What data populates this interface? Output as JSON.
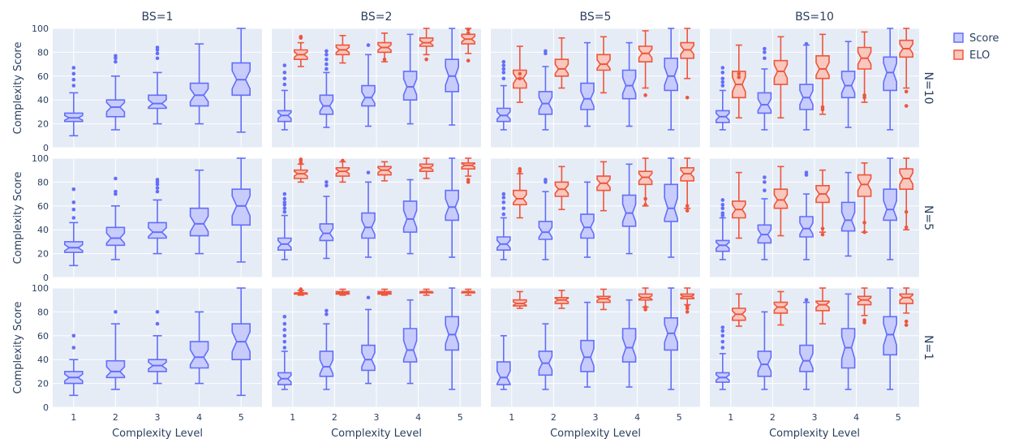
{
  "legend": [
    {
      "name": "Score",
      "color": "#636efa",
      "fill": "#c8ccfd"
    },
    {
      "name": "ELO",
      "color": "#ef553b",
      "fill": "#f9c7bd"
    }
  ],
  "col_titles": [
    "BS=1",
    "BS=2",
    "BS=5",
    "BS=10"
  ],
  "row_titles": [
    "N=10",
    "N=5",
    "N=1"
  ],
  "xlabel": "Complexity Level",
  "ylabel": "Complexity Score",
  "chart_data": {
    "type": "box",
    "layout": "facet grid, rows N = [10, 5, 1], columns BS = [1, 2, 5, 10], shared axes",
    "x": [
      1,
      2,
      3,
      4,
      5
    ],
    "ylim": [
      0,
      100
    ],
    "yticks": [
      0,
      20,
      40,
      60,
      80,
      100
    ],
    "notched": true,
    "grid": true,
    "legend_position": "top-right",
    "series": [
      "Score",
      "ELO"
    ],
    "panels": [
      {
        "row": "N=10",
        "col": "BS=1",
        "score": [
          [
            10,
            22,
            25,
            29,
            46
          ],
          [
            15,
            26,
            34,
            40,
            60
          ],
          [
            20,
            33,
            37,
            44,
            63
          ],
          [
            20,
            35,
            44,
            54,
            87
          ],
          [
            13,
            44,
            57,
            71,
            100
          ]
        ],
        "score_outliers": [
          [
            52,
            57,
            62,
            67
          ],
          [
            72,
            75,
            77
          ],
          [
            75,
            79,
            82,
            84
          ],
          [],
          []
        ],
        "elo": null
      },
      {
        "row": "N=10",
        "col": "BS=2",
        "score": [
          [
            15,
            22,
            27,
            31,
            48
          ],
          [
            17,
            28,
            35,
            44,
            63
          ],
          [
            18,
            35,
            42,
            52,
            78
          ],
          [
            20,
            40,
            51,
            64,
            95
          ],
          [
            19,
            47,
            60,
            74,
            100
          ]
        ],
        "score_outliers": [
          [
            53,
            58,
            63,
            69
          ],
          [
            66,
            70,
            74,
            78,
            81
          ],
          [
            86
          ],
          [],
          []
        ],
        "elo": [
          [
            68,
            74,
            78,
            82,
            88
          ],
          [
            71,
            78,
            82,
            86,
            94
          ],
          [
            72,
            80,
            84,
            88,
            96
          ],
          [
            78,
            85,
            88,
            92,
            100
          ],
          [
            79,
            87,
            91,
            95,
            100
          ]
        ],
        "elo_outliers": [
          [
            92,
            93
          ],
          [],
          [
            74
          ],
          [
            74
          ],
          [
            73,
            96,
            99
          ]
        ]
      },
      {
        "row": "N=10",
        "col": "BS=5",
        "score": [
          [
            15,
            22,
            27,
            33,
            52
          ],
          [
            15,
            28,
            37,
            47,
            68
          ],
          [
            18,
            32,
            41,
            54,
            88
          ],
          [
            18,
            41,
            52,
            65,
            88
          ],
          [
            15,
            48,
            60,
            75,
            100
          ]
        ],
        "score_outliers": [
          [
            58,
            63,
            66,
            69,
            72
          ],
          [
            79,
            81
          ],
          [],
          [],
          []
        ],
        "elo": [
          [
            38,
            50,
            58,
            65,
            85
          ],
          [
            50,
            60,
            66,
            74,
            92
          ],
          [
            46,
            65,
            70,
            78,
            93
          ],
          [
            50,
            72,
            79,
            85,
            98
          ],
          [
            58,
            75,
            82,
            88,
            100
          ]
        ],
        "elo_outliers": [
          [
            58,
            62
          ],
          [],
          [],
          [
            44
          ],
          [
            42
          ]
        ]
      },
      {
        "row": "N=10",
        "col": "BS=10",
        "score": [
          [
            15,
            21,
            26,
            31,
            48
          ],
          [
            15,
            29,
            36,
            46,
            66
          ],
          [
            15,
            32,
            42,
            53,
            86
          ],
          [
            17,
            42,
            52,
            64,
            89
          ],
          [
            15,
            48,
            63,
            76,
            100
          ]
        ],
        "score_outliers": [
          [
            52,
            55,
            58,
            63,
            67
          ],
          [
            75,
            80,
            83
          ],
          [
            87
          ],
          [],
          []
        ],
        "elo": [
          [
            25,
            42,
            53,
            64,
            86
          ],
          [
            25,
            53,
            64,
            73,
            93
          ],
          [
            28,
            58,
            66,
            77,
            95
          ],
          [
            38,
            66,
            75,
            84,
            97
          ],
          [
            50,
            76,
            83,
            90,
            100
          ]
        ],
        "elo_outliers": [
          [
            59,
            62
          ],
          [],
          [
            32,
            34
          ],
          [
            42,
            44
          ],
          [
            35,
            47
          ]
        ]
      },
      {
        "row": "N=5",
        "col": "BS=1",
        "score": [
          [
            10,
            21,
            25,
            30,
            46
          ],
          [
            15,
            27,
            33,
            42,
            60
          ],
          [
            20,
            33,
            38,
            46,
            65
          ],
          [
            20,
            35,
            45,
            58,
            90
          ],
          [
            13,
            44,
            60,
            74,
            100
          ]
        ],
        "score_outliers": [
          [
            50,
            57,
            63,
            74
          ],
          [
            70,
            72,
            83
          ],
          [
            72,
            75,
            78,
            80,
            82
          ],
          [],
          []
        ],
        "elo": null
      },
      {
        "row": "N=5",
        "col": "BS=2",
        "score": [
          [
            15,
            23,
            28,
            33,
            52
          ],
          [
            16,
            31,
            37,
            45,
            68
          ],
          [
            17,
            33,
            42,
            54,
            80
          ],
          [
            20,
            38,
            49,
            64,
            82
          ],
          [
            17,
            48,
            59,
            73,
            100
          ]
        ],
        "score_outliers": [
          [
            55,
            58,
            61,
            63,
            66,
            70
          ],
          [
            77,
            80
          ],
          [
            88
          ],
          [],
          []
        ],
        "elo": [
          [
            80,
            83,
            87,
            90,
            95
          ],
          [
            80,
            85,
            89,
            92,
            97
          ],
          [
            81,
            86,
            90,
            93,
            97
          ],
          [
            83,
            89,
            92,
            95,
            100
          ],
          [
            85,
            91,
            94,
            96,
            100
          ]
        ],
        "elo_outliers": [
          [
            96,
            98,
            99
          ],
          [
            98
          ],
          [],
          [],
          [
            80,
            82
          ]
        ]
      },
      {
        "row": "N=5",
        "col": "BS=5",
        "score": [
          [
            15,
            23,
            28,
            34,
            50
          ],
          [
            15,
            32,
            38,
            47,
            72
          ],
          [
            17,
            33,
            42,
            53,
            80
          ],
          [
            20,
            43,
            54,
            69,
            95
          ],
          [
            17,
            47,
            58,
            78,
            100
          ]
        ],
        "score_outliers": [
          [
            53,
            58,
            63,
            67,
            70
          ],
          [
            80,
            82
          ],
          [],
          [],
          []
        ],
        "elo": [
          [
            50,
            61,
            66,
            73,
            87
          ],
          [
            57,
            68,
            74,
            80,
            93
          ],
          [
            56,
            73,
            79,
            85,
            97
          ],
          [
            60,
            78,
            84,
            89,
            100
          ],
          [
            58,
            81,
            87,
            92,
            100
          ]
        ],
        "elo_outliers": [
          [
            89,
            91
          ],
          [],
          [],
          [
            61,
            66
          ],
          [
            56,
            60
          ]
        ]
      },
      {
        "row": "N=5",
        "col": "BS=10",
        "score": [
          [
            15,
            22,
            27,
            31,
            50
          ],
          [
            15,
            29,
            36,
            44,
            66
          ],
          [
            15,
            34,
            41,
            51,
            70
          ],
          [
            18,
            39,
            48,
            63,
            88
          ],
          [
            15,
            48,
            57,
            74,
            100
          ]
        ],
        "score_outliers": [
          [
            52,
            54,
            58,
            61,
            65
          ],
          [
            73,
            80,
            84
          ],
          [
            86,
            88
          ],
          [],
          []
        ],
        "elo": [
          [
            33,
            50,
            57,
            64,
            88
          ],
          [
            35,
            58,
            65,
            74,
            93
          ],
          [
            38,
            63,
            70,
            77,
            90
          ],
          [
            38,
            68,
            78,
            86,
            96
          ],
          [
            40,
            74,
            83,
            91,
            100
          ]
        ],
        "elo_outliers": [
          [],
          [],
          [
            36,
            41
          ],
          [
            38,
            46
          ],
          [
            42,
            55
          ]
        ]
      },
      {
        "row": "N=1",
        "col": "BS=1",
        "score": [
          [
            10,
            20,
            25,
            30,
            40
          ],
          [
            15,
            25,
            30,
            39,
            70
          ],
          [
            20,
            30,
            35,
            40,
            60
          ],
          [
            20,
            33,
            42,
            55,
            80
          ],
          [
            10,
            40,
            55,
            70,
            100
          ]
        ],
        "score_outliers": [
          [
            50,
            60
          ],
          [
            80
          ],
          [
            70,
            80
          ],
          [],
          []
        ],
        "elo": null
      },
      {
        "row": "N=1",
        "col": "BS=2",
        "score": [
          [
            15,
            19,
            24,
            29,
            47
          ],
          [
            15,
            26,
            34,
            47,
            70
          ],
          [
            20,
            31,
            40,
            52,
            82
          ],
          [
            20,
            38,
            48,
            66,
            90
          ],
          [
            15,
            48,
            61,
            76,
            100
          ]
        ],
        "score_outliers": [
          [
            50,
            55,
            60,
            65,
            70,
            76
          ],
          [
            78,
            81
          ],
          [
            92
          ],
          [],
          []
        ],
        "elo": [
          [
            94,
            95,
            96,
            96,
            98
          ],
          [
            94,
            95,
            96,
            97,
            99
          ],
          [
            94,
            95,
            96,
            97,
            99
          ],
          [
            94,
            96,
            97,
            97,
            99
          ],
          [
            94,
            96,
            97,
            97,
            99
          ]
        ],
        "elo_outliers": [
          [
            97,
            99
          ],
          [],
          [],
          [],
          []
        ]
      },
      {
        "row": "N=1",
        "col": "BS=5",
        "score": [
          [
            15,
            19,
            25,
            38,
            60
          ],
          [
            15,
            27,
            37,
            47,
            70
          ],
          [
            17,
            30,
            42,
            56,
            88
          ],
          [
            17,
            38,
            50,
            66,
            90
          ],
          [
            15,
            48,
            62,
            75,
            100
          ]
        ],
        "score_outliers": [
          [],
          [],
          [],
          [],
          []
        ],
        "elo": [
          [
            83,
            85,
            87,
            90,
            97
          ],
          [
            83,
            87,
            90,
            92,
            98
          ],
          [
            82,
            88,
            91,
            93,
            99
          ],
          [
            84,
            90,
            92,
            95,
            100
          ],
          [
            86,
            91,
            93,
            95,
            100
          ]
        ],
        "elo_outliers": [
          [],
          [],
          [],
          [
            82,
            84
          ],
          [
            80,
            83,
            85
          ]
        ]
      },
      {
        "row": "N=1",
        "col": "BS=10",
        "score": [
          [
            15,
            21,
            25,
            29,
            45
          ],
          [
            15,
            26,
            36,
            47,
            80
          ],
          [
            15,
            30,
            39,
            52,
            88
          ],
          [
            15,
            33,
            50,
            66,
            95
          ],
          [
            15,
            44,
            61,
            76,
            100
          ]
        ],
        "score_outliers": [
          [
            50,
            55,
            60,
            64,
            67
          ],
          [],
          [
            90
          ],
          [],
          []
        ],
        "elo": [
          [
            68,
            73,
            78,
            83,
            95
          ],
          [
            69,
            79,
            84,
            88,
            97
          ],
          [
            70,
            81,
            86,
            89,
            100
          ],
          [
            77,
            86,
            90,
            93,
            100
          ],
          [
            79,
            87,
            92,
            95,
            100
          ]
        ],
        "elo_outliers": [
          [],
          [],
          [],
          [
            71,
            73
          ],
          [
            69,
            72
          ]
        ]
      }
    ]
  }
}
